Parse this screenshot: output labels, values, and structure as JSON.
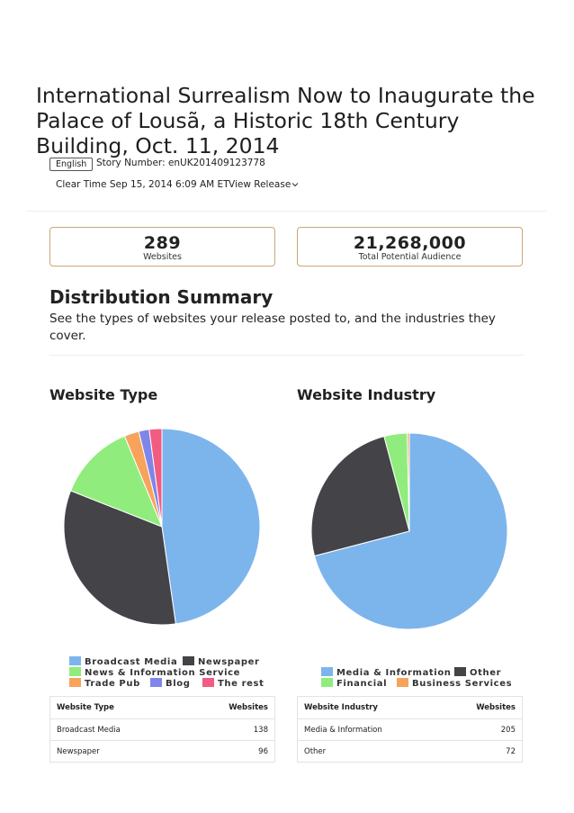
{
  "release": {
    "title": "International Surrealism Now to Inaugurate the Palace of Lousã, a Historic 18th Century Building, Oct. 11, 2014",
    "language": "English",
    "story_number": "Story Number: enUK201409123778",
    "clear_time": "Clear Time Sep 15, 2014 6:09 AM ET",
    "view_release": "View Release"
  },
  "stats": {
    "websites_count": "289",
    "websites_label": "Websites",
    "audience_count": "21,268,000",
    "audience_label": "Total Potential Audience"
  },
  "summary": {
    "title": "Distribution Summary",
    "description": "See the types of websites your release posted to, and the industries they cover."
  },
  "chart_data": [
    {
      "type": "pie",
      "title": "Website Type",
      "labels": [
        "Broadcast Media",
        "Newspaper",
        "News & Information Service",
        "Trade Pub",
        "Blog",
        "The rest"
      ],
      "values": [
        138,
        96,
        37,
        7,
        5,
        6
      ],
      "colors": [
        "#7cb5ec",
        "#434348",
        "#90ed7d",
        "#f7a35c",
        "#8085e9",
        "#f15c80"
      ],
      "legend_position": "bottom"
    },
    {
      "type": "pie",
      "title": "Website Industry",
      "labels": [
        "Media & Information",
        "Other",
        "Financial",
        "Business Services"
      ],
      "values": [
        205,
        72,
        11,
        1
      ],
      "colors": [
        "#7cb5ec",
        "#434348",
        "#90ed7d",
        "#f7a35c"
      ],
      "legend_position": "bottom"
    }
  ],
  "tables": {
    "type": {
      "headers": [
        "Website Type",
        "Websites"
      ],
      "rows": [
        {
          "label": "Broadcast Media",
          "value": "138"
        },
        {
          "label": "Newspaper",
          "value": "96"
        }
      ]
    },
    "industry": {
      "headers": [
        "Website Industry",
        "Websites"
      ],
      "rows": [
        {
          "label": "Media & Information",
          "value": "205"
        },
        {
          "label": "Other",
          "value": "72"
        }
      ]
    }
  }
}
